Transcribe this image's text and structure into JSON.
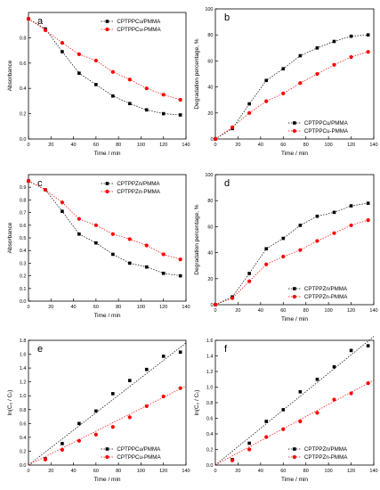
{
  "figure": {
    "panels": [
      "a",
      "b",
      "c",
      "d",
      "e",
      "f"
    ]
  },
  "chart_data": [
    {
      "panel": "a",
      "type": "line",
      "xlabel": "Time / min",
      "ylabel": "Absorbance",
      "xlim": [
        0,
        140
      ],
      "ylim": [
        0,
        1.0
      ],
      "xticks": [
        "0",
        "20",
        "40",
        "60",
        "80",
        "100",
        "120",
        "140"
      ],
      "yticks": [
        "0.0",
        "0.2",
        "0.4",
        "0.6",
        "0.8"
      ],
      "legend_position": "top-right",
      "series": [
        {
          "name": "CPTPPCu/PMMA",
          "color": "#000000",
          "marker": "square",
          "x": [
            0,
            15,
            30,
            45,
            60,
            75,
            90,
            105,
            120,
            135
          ],
          "y": [
            0.95,
            0.87,
            0.69,
            0.52,
            0.43,
            0.34,
            0.28,
            0.23,
            0.2,
            0.19
          ]
        },
        {
          "name": "CPTPPCu-PMMA",
          "color": "#ff0000",
          "marker": "circle",
          "x": [
            0,
            15,
            30,
            45,
            60,
            75,
            90,
            105,
            120,
            135
          ],
          "y": [
            0.95,
            0.86,
            0.76,
            0.67,
            0.62,
            0.53,
            0.47,
            0.4,
            0.35,
            0.31
          ]
        }
      ]
    },
    {
      "panel": "b",
      "type": "line",
      "xlabel": "Time / min",
      "ylabel": "Degradation percentage, %",
      "xlim": [
        0,
        140
      ],
      "ylim": [
        0,
        100
      ],
      "xticks": [
        "0",
        "20",
        "40",
        "60",
        "80",
        "100",
        "120",
        "140"
      ],
      "yticks": [
        "0",
        "20",
        "40",
        "60",
        "80",
        "100"
      ],
      "legend_position": "bottom-right",
      "series": [
        {
          "name": "CPTPPCu/PMMA",
          "color": "#000000",
          "marker": "square",
          "x": [
            0,
            15,
            30,
            45,
            60,
            75,
            90,
            105,
            120,
            135
          ],
          "y": [
            0,
            8,
            27,
            45,
            54,
            64,
            70,
            75,
            79,
            80
          ]
        },
        {
          "name": "CPTPPCu-PMMA",
          "color": "#ff0000",
          "marker": "circle",
          "x": [
            0,
            15,
            30,
            45,
            60,
            75,
            90,
            105,
            120,
            135
          ],
          "y": [
            0,
            9,
            20,
            29,
            35,
            43,
            50,
            57,
            63,
            67
          ]
        }
      ]
    },
    {
      "panel": "c",
      "type": "line",
      "xlabel": "Time / min",
      "ylabel": "Absorbance",
      "xlim": [
        0,
        140
      ],
      "ylim": [
        0,
        1.0
      ],
      "xticks": [
        "0",
        "20",
        "40",
        "60",
        "80",
        "100",
        "120",
        "140"
      ],
      "yticks": [
        "0.0",
        "0.1",
        "0.2",
        "0.3",
        "0.4",
        "0.5",
        "0.6",
        "0.7",
        "0.8",
        "0.9"
      ],
      "legend_position": "top-right",
      "series": [
        {
          "name": "CPTPPZn/PMMA",
          "color": "#000000",
          "marker": "square",
          "x": [
            0,
            15,
            30,
            45,
            60,
            75,
            90,
            105,
            120,
            135
          ],
          "y": [
            0.95,
            0.88,
            0.71,
            0.53,
            0.46,
            0.37,
            0.3,
            0.27,
            0.22,
            0.2
          ]
        },
        {
          "name": "CPTPPZn-PMMA",
          "color": "#ff0000",
          "marker": "circle",
          "x": [
            0,
            15,
            30,
            45,
            60,
            75,
            90,
            105,
            120,
            135
          ],
          "y": [
            0.95,
            0.88,
            0.78,
            0.65,
            0.6,
            0.53,
            0.49,
            0.44,
            0.37,
            0.33
          ]
        }
      ]
    },
    {
      "panel": "d",
      "type": "line",
      "xlabel": "Time / min",
      "ylabel": "Degradation percentage, %",
      "xlim": [
        0,
        140
      ],
      "ylim": [
        0,
        100
      ],
      "xticks": [
        "0",
        "20",
        "40",
        "60",
        "80",
        "100",
        "120",
        "140"
      ],
      "yticks": [
        "0",
        "20",
        "40",
        "60",
        "80",
        "100"
      ],
      "legend_position": "bottom-right",
      "series": [
        {
          "name": "CPTPPZn/PMMA",
          "color": "#000000",
          "marker": "square",
          "x": [
            0,
            15,
            30,
            45,
            60,
            75,
            90,
            105,
            120,
            135
          ],
          "y": [
            0,
            6,
            24,
            43,
            51,
            61,
            68,
            71,
            76,
            78
          ]
        },
        {
          "name": "CPTPPZn-PMMA",
          "color": "#ff0000",
          "marker": "circle",
          "x": [
            0,
            15,
            30,
            45,
            60,
            75,
            90,
            105,
            120,
            135
          ],
          "y": [
            0,
            5,
            18,
            31,
            37,
            42,
            49,
            55,
            61,
            65
          ]
        }
      ]
    },
    {
      "panel": "e",
      "type": "scatter",
      "xlabel": "Time / min",
      "ylabel": "ln(C₀ / Cₜ)",
      "xlim": [
        0,
        140
      ],
      "ylim": [
        0,
        1.8
      ],
      "xticks": [
        "0",
        "20",
        "40",
        "60",
        "80",
        "100",
        "120",
        "140"
      ],
      "yticks": [
        "0.0",
        "0.2",
        "0.4",
        "0.6",
        "0.8",
        "1.0",
        "1.2",
        "1.4",
        "1.6",
        "1.8"
      ],
      "legend_position": "bottom-right",
      "fit_lines": true,
      "series": [
        {
          "name": "CPTPPCu/PMMA",
          "color": "#000000",
          "marker": "square",
          "x": [
            15,
            30,
            45,
            60,
            75,
            90,
            105,
            120,
            135
          ],
          "y": [
            0.09,
            0.31,
            0.6,
            0.78,
            1.03,
            1.22,
            1.38,
            1.57,
            1.63
          ],
          "fit": [
            0,
            0.01259
          ]
        },
        {
          "name": "CPTPPCu-PMMA",
          "color": "#ff0000",
          "marker": "circle",
          "x": [
            15,
            30,
            45,
            60,
            75,
            90,
            105,
            120,
            135
          ],
          "y": [
            0.08,
            0.22,
            0.35,
            0.44,
            0.55,
            0.69,
            0.85,
            0.99,
            1.11
          ],
          "fit": [
            0,
            0.00815
          ]
        }
      ]
    },
    {
      "panel": "f",
      "type": "scatter",
      "xlabel": "Time / min",
      "ylabel": "ln(C₀ / Cₜ)",
      "xlim": [
        0,
        140
      ],
      "ylim": [
        0,
        1.6
      ],
      "xticks": [
        "0",
        "20",
        "40",
        "60",
        "80",
        "100",
        "120",
        "140"
      ],
      "yticks": [
        "0.0",
        "0.2",
        "0.4",
        "0.6",
        "0.8",
        "1.0",
        "1.2",
        "1.4",
        "1.6"
      ],
      "legend_position": "bottom-right",
      "fit_lines": true,
      "series": [
        {
          "name": "CPTPPZn/PMMA",
          "color": "#000000",
          "marker": "square",
          "x": [
            15,
            30,
            45,
            60,
            75,
            90,
            105,
            120,
            135
          ],
          "y": [
            0.07,
            0.28,
            0.56,
            0.71,
            0.94,
            1.1,
            1.26,
            1.47,
            1.53
          ],
          "fit": [
            0,
            0.01178
          ]
        },
        {
          "name": "CPTPPZn-PMMA",
          "color": "#ff0000",
          "marker": "circle",
          "x": [
            15,
            30,
            45,
            60,
            75,
            90,
            105,
            120,
            135
          ],
          "y": [
            0.06,
            0.2,
            0.36,
            0.46,
            0.56,
            0.67,
            0.84,
            0.92,
            1.05
          ],
          "fit": [
            0,
            0.00778
          ]
        }
      ]
    }
  ]
}
